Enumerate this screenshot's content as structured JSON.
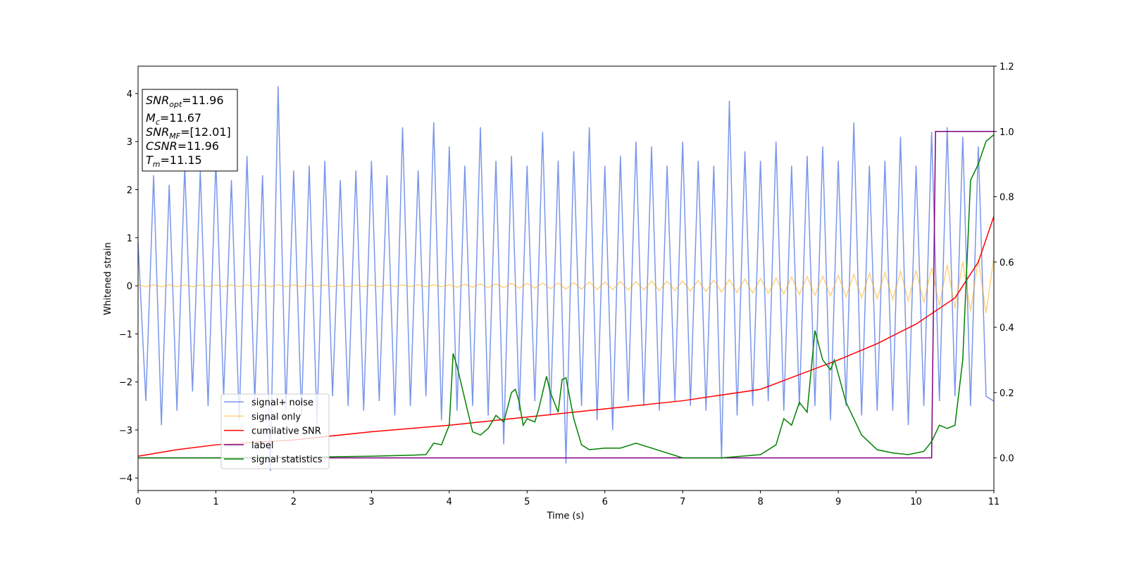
{
  "chart_data": {
    "type": "line",
    "xlabel": "Time (s)",
    "ylabel": "Whitened strain",
    "xlim": [
      0,
      11
    ],
    "ylim": [
      -4.26,
      4.57
    ],
    "y2lim": [
      -0.1,
      1.2
    ],
    "xticks": [
      0,
      1,
      2,
      3,
      4,
      5,
      6,
      7,
      8,
      9,
      10,
      11
    ],
    "yticks": [
      {
        "value": -4,
        "label": "−4"
      },
      {
        "value": -3,
        "label": "−3"
      },
      {
        "value": -2,
        "label": "−2"
      },
      {
        "value": -1,
        "label": "−1"
      },
      0,
      1,
      2,
      3,
      4
    ],
    "y2ticks": [
      {
        "value": 0,
        "label": "0.0"
      },
      {
        "value": 0.2,
        "label": "0.2"
      },
      {
        "value": 0.4,
        "label": "0.4"
      },
      {
        "value": 0.6,
        "label": "0.6"
      },
      {
        "value": 0.8,
        "label": "0.8"
      },
      {
        "value": 1,
        "label": "1.0"
      },
      {
        "value": 1.2,
        "label": "1.2"
      }
    ],
    "legend": "lower center",
    "x": [
      0,
      0.1,
      0.2,
      0.3,
      0.4,
      0.5,
      0.6,
      0.7,
      0.8,
      0.9,
      1,
      1.1,
      1.2,
      1.3,
      1.4,
      1.5,
      1.6,
      1.7,
      1.8,
      1.9,
      2,
      2.1,
      2.2,
      2.3,
      2.4,
      2.5,
      2.6,
      2.7,
      2.8,
      2.9,
      3,
      3.1,
      3.2,
      3.3,
      3.4,
      3.5,
      3.6,
      3.7,
      3.8,
      3.9,
      4,
      4.1,
      4.2,
      4.3,
      4.4,
      4.5,
      4.6,
      4.7,
      4.8,
      4.9,
      5,
      5.1,
      5.2,
      5.3,
      5.4,
      5.5,
      5.6,
      5.7,
      5.8,
      5.9,
      6,
      6.1,
      6.2,
      6.3,
      6.4,
      6.5,
      6.6,
      6.7,
      6.8,
      6.9,
      7,
      7.1,
      7.2,
      7.3,
      7.4,
      7.5,
      7.6,
      7.7,
      7.8,
      7.9,
      8,
      8.1,
      8.2,
      8.3,
      8.4,
      8.5,
      8.6,
      8.7,
      8.8,
      8.9,
      9,
      9.1,
      9.2,
      9.3,
      9.4,
      9.5,
      9.6,
      9.7,
      9.8,
      9.9,
      10,
      10.1,
      10.2,
      10.3,
      10.4,
      10.5,
      10.6,
      10.7,
      10.8,
      10.9,
      11
    ],
    "series": [
      {
        "name": "signal+ noise",
        "color": "#4169e1",
        "opacity": 0.7,
        "values": [
          0.9,
          -2.4,
          2.3,
          -2.9,
          2.1,
          -2.6,
          2.5,
          -2.2,
          2.4,
          -2.5,
          2.6,
          -2.3,
          2.2,
          -2.8,
          2.7,
          -2.4,
          2.3,
          -3.85,
          4.15,
          -2.6,
          2.4,
          -2.7,
          2.5,
          -2.9,
          2.6,
          -2.3,
          2.2,
          -2.5,
          2.4,
          -2.6,
          2.6,
          -2.4,
          2.3,
          -2.7,
          3.3,
          -2.5,
          2.4,
          -2.3,
          3.4,
          -2.8,
          2.9,
          -2.6,
          2.5,
          -2.5,
          3.3,
          -2.7,
          2.6,
          -3.3,
          2.7,
          -2.6,
          2.5,
          -2.4,
          3.2,
          -2.7,
          2.6,
          -3.7,
          2.8,
          -2.5,
          3.3,
          -2.8,
          2.5,
          -3.0,
          2.7,
          -2.4,
          3.0,
          -2.5,
          2.9,
          -2.6,
          2.5,
          -2.4,
          3.0,
          -2.5,
          2.6,
          -2.6,
          2.5,
          -3.6,
          3.85,
          -2.7,
          2.8,
          -2.5,
          2.6,
          -2.4,
          3.0,
          -2.6,
          2.5,
          -2.5,
          2.7,
          -2.5,
          2.9,
          -2.8,
          2.6,
          -2.5,
          3.4,
          -2.7,
          2.5,
          -2.6,
          2.6,
          -2.6,
          3.1,
          -2.9,
          2.5,
          -2.5,
          3.2,
          -2.4,
          3.3,
          -2.3,
          3.1,
          -2.5,
          2.9,
          -2.3,
          -2.4
        ]
      },
      {
        "name": "signal only",
        "color": "#ffa500",
        "opacity": 0.5,
        "values": [
          0.02,
          -0.02,
          0.02,
          -0.02,
          0.02,
          -0.02,
          0.02,
          -0.02,
          0.02,
          -0.02,
          0.02,
          -0.02,
          0.02,
          -0.02,
          0.02,
          -0.02,
          0.02,
          -0.02,
          0.02,
          -0.02,
          0.02,
          -0.02,
          0.02,
          -0.02,
          0.02,
          -0.02,
          0.02,
          -0.02,
          0.02,
          -0.02,
          0.02,
          -0.02,
          0.02,
          -0.02,
          0.02,
          -0.02,
          0.02,
          -0.02,
          0.02,
          -0.02,
          0.02,
          -0.03,
          0.03,
          -0.03,
          0.04,
          -0.04,
          0.04,
          -0.04,
          0.05,
          -0.05,
          0.05,
          -0.05,
          0.06,
          -0.06,
          0.06,
          -0.07,
          0.07,
          -0.07,
          0.08,
          -0.08,
          0.08,
          -0.08,
          0.09,
          -0.09,
          0.09,
          -0.09,
          0.1,
          -0.1,
          0.1,
          -0.1,
          0.1,
          -0.11,
          0.11,
          -0.12,
          0.12,
          -0.13,
          0.13,
          -0.14,
          0.14,
          -0.15,
          0.15,
          -0.16,
          0.16,
          -0.17,
          0.18,
          -0.18,
          0.19,
          -0.2,
          0.2,
          -0.21,
          0.22,
          -0.23,
          0.24,
          -0.25,
          0.26,
          -0.27,
          0.28,
          -0.29,
          0.3,
          -0.31,
          0.32,
          -0.35,
          0.38,
          -0.41,
          0.44,
          -0.47,
          0.5,
          -0.53,
          0.55,
          -0.57,
          0.6
        ]
      },
      {
        "name": "cumilative SNR",
        "color": "#ff0000",
        "axis": "y2",
        "x": [
          0,
          0.5,
          1,
          2,
          3,
          4,
          5,
          6,
          7,
          8,
          9,
          9.5,
          10,
          10.5,
          10.8,
          11
        ],
        "values": [
          0.005,
          0.025,
          0.04,
          0.055,
          0.08,
          0.1,
          0.125,
          0.15,
          0.175,
          0.21,
          0.3,
          0.35,
          0.41,
          0.49,
          0.6,
          0.74
        ]
      },
      {
        "name": "label",
        "color": "#800080",
        "axis": "y2",
        "x": [
          0,
          10.2,
          10.25,
          11
        ],
        "values": [
          0,
          0,
          1,
          1
        ]
      },
      {
        "name": "signal statistics",
        "color": "#008000",
        "axis": "y2",
        "x": [
          0,
          1,
          2,
          3,
          3.5,
          3.7,
          3.8,
          3.9,
          4,
          4.05,
          4.1,
          4.2,
          4.3,
          4.4,
          4.5,
          4.6,
          4.7,
          4.8,
          4.85,
          4.9,
          4.95,
          5,
          5.1,
          5.15,
          5.25,
          5.3,
          5.4,
          5.45,
          5.5,
          5.6,
          5.7,
          5.8,
          6,
          6.2,
          6.4,
          6.6,
          6.8,
          7,
          7.5,
          8,
          8.2,
          8.3,
          8.4,
          8.5,
          8.6,
          8.7,
          8.8,
          8.9,
          8.95,
          9.1,
          9.3,
          9.5,
          9.7,
          9.9,
          10.1,
          10.2,
          10.3,
          10.4,
          10.5,
          10.6,
          10.7,
          10.8,
          10.9,
          11
        ],
        "values": [
          0,
          0,
          0.002,
          0.005,
          0.008,
          0.01,
          0.045,
          0.04,
          0.1,
          0.32,
          0.28,
          0.18,
          0.08,
          0.07,
          0.09,
          0.13,
          0.11,
          0.2,
          0.21,
          0.17,
          0.1,
          0.12,
          0.11,
          0.15,
          0.25,
          0.2,
          0.14,
          0.24,
          0.245,
          0.12,
          0.04,
          0.025,
          0.03,
          0.03,
          0.045,
          0.03,
          0.015,
          0,
          0,
          0.01,
          0.04,
          0.12,
          0.1,
          0.17,
          0.14,
          0.39,
          0.3,
          0.27,
          0.3,
          0.17,
          0.07,
          0.025,
          0.015,
          0.01,
          0.02,
          0.05,
          0.1,
          0.09,
          0.1,
          0.3,
          0.85,
          0.9,
          0.97,
          0.99
        ]
      }
    ],
    "annotations": [
      {
        "base": "SNR",
        "sub": "opt",
        "rest": "=11.96"
      },
      {
        "base": "M",
        "sub": "c",
        "rest": "=11.67"
      },
      {
        "base": "SNR",
        "sub": "MF",
        "rest": "=[12.01]"
      },
      {
        "base": "CSNR",
        "rest": "=11.96"
      },
      {
        "base": "T",
        "sub": "m",
        "rest": "=11.15"
      }
    ]
  }
}
